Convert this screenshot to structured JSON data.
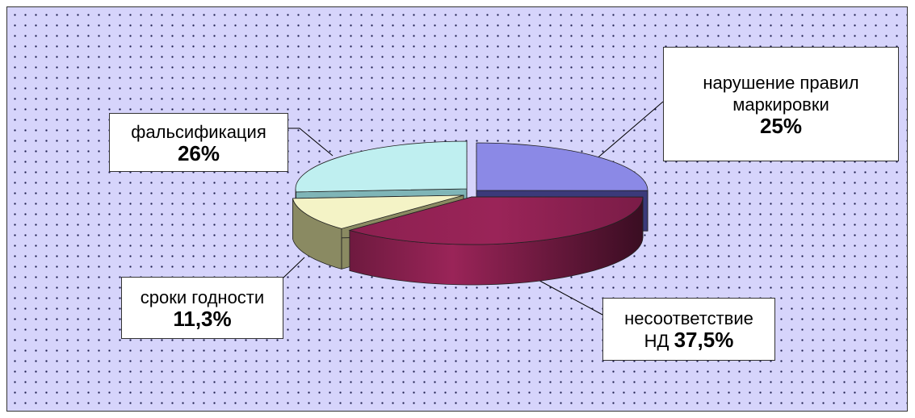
{
  "chart_data": {
    "type": "pie",
    "style": "3d-exploded",
    "title": "",
    "slices": [
      {
        "name": "нарушение правил маркировки",
        "value": 25,
        "value_label": "25%",
        "color": "#8b89e6"
      },
      {
        "name": "несоответствие НД",
        "value": 37.5,
        "value_label": "37,5%",
        "color": "#9a2458"
      },
      {
        "name": "сроки годности",
        "value": 11.3,
        "value_label": "11,3%",
        "color": "#f4f3c6"
      },
      {
        "name": "фальсификация",
        "value": 26,
        "value_label": "26%",
        "color": "#bfeff0"
      }
    ],
    "labels": {
      "marking_line1": "нарушение правил",
      "marking_line2": "маркировки",
      "nd_line1": "несоответствие",
      "nd_prefix": "НД",
      "expiry_line1": "сроки годности",
      "fake_line1": "фальсификация"
    },
    "legend": "none",
    "background": "dotted-lavender"
  }
}
